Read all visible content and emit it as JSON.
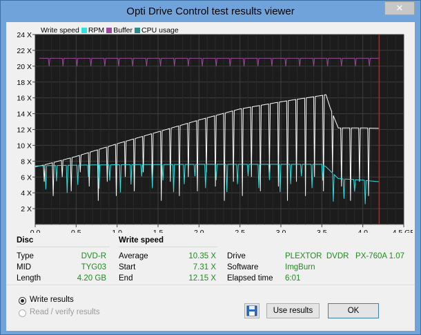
{
  "window": {
    "title": "Opti Drive Control test results viewer",
    "close_glyph": "✕"
  },
  "legend": [
    {
      "label": "Write speed",
      "color": "#ffffff"
    },
    {
      "label": "RPM",
      "color": "#33e0e0"
    },
    {
      "label": "Buffer",
      "color": "#9a4a9a"
    },
    {
      "label": "CPU usage",
      "color": "#2e8b8b"
    }
  ],
  "chart_data": {
    "type": "line",
    "y_ticks": [
      "24 X",
      "22 X",
      "20 X",
      "18 X",
      "16 X",
      "14 X",
      "12 X",
      "10 X",
      "8 X",
      "6 X",
      "4 X",
      "2 X"
    ],
    "x_ticks": [
      "0.0",
      "0.5",
      "1.0",
      "1.5",
      "2.0",
      "2.5",
      "3.0",
      "3.5",
      "4.0",
      "4.5 GB"
    ],
    "xlim": [
      0,
      4.5
    ],
    "ylim": [
      0,
      24
    ],
    "grid": true,
    "end_marker_gb": 4.2,
    "series": [
      {
        "name": "Write speed",
        "color": "#ffffff",
        "x": [
          0.0,
          0.1,
          0.5,
          1.0,
          1.5,
          2.0,
          2.5,
          3.0,
          3.5,
          3.55,
          3.6,
          3.7,
          4.0,
          4.2
        ],
        "y": [
          7.3,
          7.5,
          8.6,
          10.2,
          11.7,
          13.2,
          14.6,
          15.5,
          16.3,
          16.4,
          14.8,
          12.2,
          12.2,
          12.15
        ]
      },
      {
        "name": "RPM",
        "color": "#33e0e0",
        "x": [
          0.0,
          0.5,
          1.0,
          2.0,
          3.0,
          3.5,
          3.55,
          3.7,
          4.0,
          4.2
        ],
        "y": [
          7.4,
          7.5,
          7.55,
          7.6,
          7.6,
          7.6,
          7.3,
          5.8,
          5.6,
          5.4
        ]
      },
      {
        "name": "Buffer",
        "color": "#9a4a9a",
        "x": [
          0.05,
          4.2
        ],
        "y": [
          21.0,
          21.0
        ]
      }
    ]
  },
  "disc": {
    "title": "Disc",
    "rows": [
      {
        "label": "Type",
        "value": "DVD-R"
      },
      {
        "label": "MID",
        "value": "TYG03"
      },
      {
        "label": "Length",
        "value": "4.20 GB"
      }
    ]
  },
  "write_speed": {
    "title": "Write speed",
    "rows": [
      {
        "label": "Average",
        "value": "10.35 X"
      },
      {
        "label": "Start",
        "value": "7.31 X"
      },
      {
        "label": "End",
        "value": "12.15 X"
      }
    ]
  },
  "drive_info": {
    "rows": [
      {
        "label": "Drive",
        "value": "PLEXTOR  DVDR   PX-760A 1.07"
      },
      {
        "label": "Software",
        "value": "ImgBurn"
      },
      {
        "label": "Elapsed time",
        "value": "6:01"
      }
    ]
  },
  "options": {
    "write_results": "Write results",
    "read_verify": "Read / verify results"
  },
  "buttons": {
    "use_results": "Use results",
    "ok": "OK"
  }
}
